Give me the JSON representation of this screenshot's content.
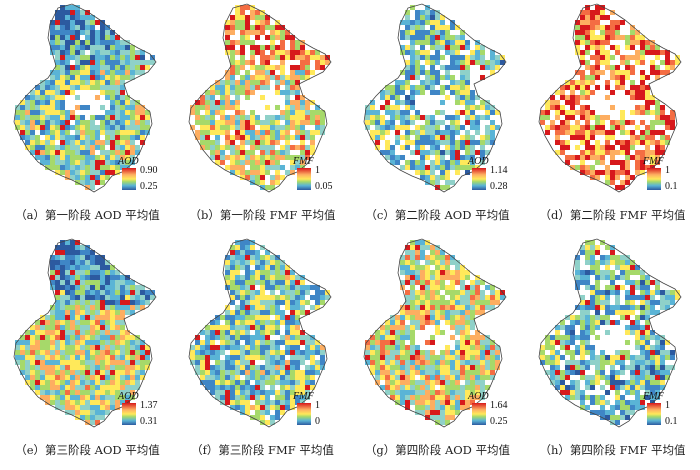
{
  "panels": [
    {
      "id": "a",
      "caption": "（a）第一阶段 AOD 平均值",
      "legend_title": "AOD",
      "max": "0.90",
      "min": "0.25",
      "seed": 11,
      "holes": 0.02,
      "bias": 0.42,
      "north": "blue",
      "center_hole": true
    },
    {
      "id": "b",
      "caption": "（b）第一阶段 FMF 平均值",
      "legend_title": "FMF",
      "max": "1",
      "min": "0.05",
      "seed": 23,
      "holes": 0.12,
      "bias": 0.55,
      "north": "warm",
      "center_hole": true
    },
    {
      "id": "c",
      "caption": "（c）第二阶段 AOD 平均值",
      "legend_title": "AOD",
      "max": "1.14",
      "min": "0.28",
      "seed": 37,
      "holes": 0.22,
      "bias": 0.38,
      "north": "mixed",
      "center_hole": true
    },
    {
      "id": "d",
      "caption": "（d）第二阶段 FMF 平均值",
      "legend_title": "FMF",
      "max": "1",
      "min": "0.1",
      "seed": 41,
      "holes": 0.25,
      "bias": 0.78,
      "north": "warm",
      "center_hole": true
    },
    {
      "id": "e",
      "caption": "（e）第三阶段 AOD 平均值",
      "legend_title": "AOD",
      "max": "1.37",
      "min": "0.31",
      "seed": 53,
      "holes": 0.0,
      "bias": 0.52,
      "north": "blue",
      "center_hole": false
    },
    {
      "id": "f",
      "caption": "（f）第三阶段 FMF 平均值",
      "legend_title": "FMF",
      "max": "1",
      "min": "0",
      "seed": 67,
      "holes": 0.06,
      "bias": 0.4,
      "north": "mixed",
      "center_hole": false
    },
    {
      "id": "g",
      "caption": "（g）第四阶段 AOD 平均值",
      "legend_title": "AOD",
      "max": "1.64",
      "min": "0.25",
      "seed": 79,
      "holes": 0.05,
      "bias": 0.55,
      "north": "mixed",
      "center_hole": true
    },
    {
      "id": "h",
      "caption": "（h）第四阶段 FMF 平均值",
      "legend_title": "FMF",
      "max": "1",
      "min": "0.1",
      "seed": 83,
      "holes": 0.18,
      "bias": 0.35,
      "north": "mixed",
      "center_hole": true
    }
  ],
  "colors": {
    "ramp": [
      "#2c5aa0",
      "#3f86c6",
      "#5ab4d6",
      "#8fd1c9",
      "#a6d96a",
      "#ffe95a",
      "#fdae61",
      "#f46d43",
      "#d7191c"
    ],
    "outline": "#444444",
    "background": "#ffffff"
  }
}
